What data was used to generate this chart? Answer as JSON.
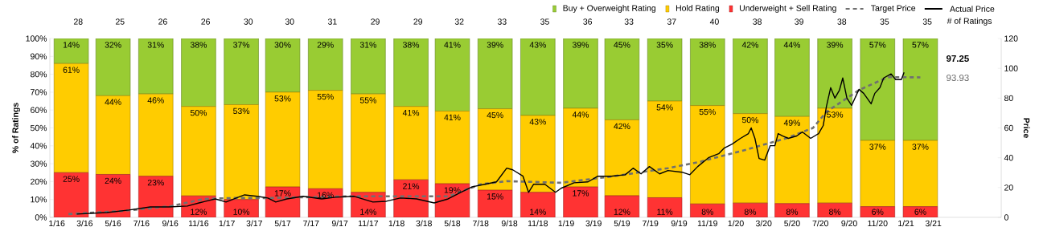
{
  "chart_data": {
    "type": "bar",
    "stacked": true,
    "ylabel": "% of Ratings",
    "y2label": "Price",
    "legend": "top right",
    "x": [
      "2016-02",
      "2016-05",
      "2016-08",
      "2016-11",
      "2017-02",
      "2017-05",
      "2017-08",
      "2017-11",
      "2018-02",
      "2018-05",
      "2018-08",
      "2018-11",
      "2019-02",
      "2019-05",
      "2019-08",
      "2019-11",
      "2020-02",
      "2020-05",
      "2020-08",
      "2020-11",
      "2021-02"
    ],
    "xlim": [
      "2015-12-17",
      "2021-07-25"
    ],
    "xticks": [
      {
        "value": "2016-01",
        "label": "1/16"
      },
      {
        "value": "2016-03",
        "label": "3/16"
      },
      {
        "value": "2016-05",
        "label": "5/16"
      },
      {
        "value": "2016-07",
        "label": "7/16"
      },
      {
        "value": "2016-09",
        "label": "9/16"
      },
      {
        "value": "2016-11",
        "label": "11/16"
      },
      {
        "value": "2017-01",
        "label": "1/17"
      },
      {
        "value": "2017-03",
        "label": "3/17"
      },
      {
        "value": "2017-05",
        "label": "5/17"
      },
      {
        "value": "2017-07",
        "label": "7/17"
      },
      {
        "value": "2017-09",
        "label": "9/17"
      },
      {
        "value": "2017-11",
        "label": "11/17"
      },
      {
        "value": "2018-01",
        "label": "1/18"
      },
      {
        "value": "2018-03",
        "label": "3/18"
      },
      {
        "value": "2018-05",
        "label": "5/18"
      },
      {
        "value": "2018-07",
        "label": "7/18"
      },
      {
        "value": "2018-09",
        "label": "9/18"
      },
      {
        "value": "2018-11",
        "label": "11/18"
      },
      {
        "value": "2019-01",
        "label": "1/19"
      },
      {
        "value": "2019-03",
        "label": "3/19"
      },
      {
        "value": "2019-05",
        "label": "5/19"
      },
      {
        "value": "2019-07",
        "label": "7/19"
      },
      {
        "value": "2019-09",
        "label": "9/19"
      },
      {
        "value": "2019-11",
        "label": "11/19"
      },
      {
        "value": "2020-01",
        "label": "1/20"
      },
      {
        "value": "2020-03",
        "label": "3/20"
      },
      {
        "value": "2020-05",
        "label": "5/20"
      },
      {
        "value": "2020-07",
        "label": "7/20"
      },
      {
        "value": "2020-09",
        "label": "9/20"
      },
      {
        "value": "2020-11",
        "label": "11/20"
      },
      {
        "value": "2021-01",
        "label": "1/21"
      },
      {
        "value": "2021-03",
        "label": "3/21"
      }
    ],
    "ylim": [
      0,
      100
    ],
    "yticks": [
      {
        "value": 0,
        "label": "0%"
      },
      {
        "value": 10,
        "label": "10%"
      },
      {
        "value": 20,
        "label": "20%"
      },
      {
        "value": 30,
        "label": "30%"
      },
      {
        "value": 40,
        "label": "40%"
      },
      {
        "value": 50,
        "label": "50%"
      },
      {
        "value": 60,
        "label": "60%"
      },
      {
        "value": 70,
        "label": "70%"
      },
      {
        "value": 80,
        "label": "80%"
      },
      {
        "value": 90,
        "label": "90%"
      },
      {
        "value": 100,
        "label": "100%"
      }
    ],
    "y2lim": [
      0,
      120
    ],
    "y2ticks": [
      0,
      20,
      40,
      60,
      80,
      100,
      120
    ],
    "series": [
      {
        "name": "Underweight + Sell Rating",
        "color": "#ff3333",
        "values": [
          25,
          24,
          23,
          12,
          10,
          17,
          16,
          14,
          21,
          18.8,
          15.2,
          14,
          17,
          12.1,
          11,
          7.5,
          8,
          7.7,
          8,
          6,
          6
        ],
        "value_labels": [
          "25%",
          "24%",
          "23%",
          "12%",
          "10%",
          "17%",
          "16%",
          "14%",
          "21%",
          "19%",
          "15%",
          "14%",
          "17%",
          "12%",
          "11%",
          "8%",
          "8%",
          "8%",
          "8%",
          "6%",
          "6%"
        ]
      },
      {
        "name": "Hold Rating",
        "color": "#ffcc00",
        "values": [
          61,
          44,
          46,
          50,
          53,
          53,
          55,
          55,
          41,
          40.6,
          45.5,
          43,
          44,
          42.4,
          54,
          55,
          50,
          48.7,
          53,
          37,
          37
        ],
        "value_labels": [
          "61%",
          "44%",
          "46%",
          "50%",
          "53%",
          "53%",
          "55%",
          "55%",
          "41%",
          "41%",
          "45%",
          "43%",
          "44%",
          "42%",
          "54%",
          "55%",
          "50%",
          "49%",
          "53%",
          "37%",
          "37%"
        ]
      },
      {
        "name": "Buy + Overweight Rating",
        "color": "#99cc33",
        "values": [
          14,
          32,
          31,
          38,
          37,
          30,
          29,
          31,
          38,
          40.6,
          39.3,
          43,
          39,
          45.5,
          35,
          37.5,
          42,
          43.6,
          39,
          57,
          57
        ],
        "value_labels": [
          "14%",
          "32%",
          "31%",
          "38%",
          "37%",
          "30%",
          "29%",
          "31%",
          "38%",
          "41%",
          "39%",
          "43%",
          "39%",
          "45%",
          "35%",
          "38%",
          "42%",
          "44%",
          "39%",
          "57%",
          "57%"
        ]
      },
      {
        "name": "Target Price",
        "type": "line",
        "axis": "y2",
        "color": "#707070",
        "line_style": "dashed",
        "x": [
          "2016-01-26",
          "2016-05-22",
          "2016-09-04",
          "2016-11-13",
          "2017-01-16",
          "2017-03-30",
          "2017-09-20",
          "2018-04-22",
          "2018-07-01",
          "2018-08-26",
          "2018-12-21",
          "2019-04-13",
          "2019-08-08",
          "2019-10-16",
          "2020-01-23",
          "2020-04-18",
          "2020-06-15",
          "2020-07-14",
          "2020-09-22",
          "2020-11-23",
          "2021-02-01"
        ],
        "values": [
          2.2,
          4.3,
          7.6,
          12.4,
          13.0,
          13.0,
          14.1,
          14.1,
          22.2,
          24.3,
          23.2,
          27.6,
          33.0,
          37.3,
          45.4,
          53.0,
          60.0,
          70.8,
          85.4,
          94.1,
          93.93
        ]
      },
      {
        "name": "Actual Price",
        "type": "line",
        "axis": "y2",
        "color": "#000000",
        "line_style": "solid",
        "x": [
          "2016-02-13",
          "2016-04-18",
          "2016-06-04",
          "2016-07-20",
          "2016-08-29",
          "2016-10-08",
          "2016-11-02",
          "2016-12-07",
          "2016-12-30",
          "2017-01-21",
          "2017-02-08",
          "2017-03-07",
          "2017-03-30",
          "2017-04-16",
          "2017-05-10",
          "2017-06-14",
          "2017-07-24",
          "2017-08-23",
          "2017-10-02",
          "2017-11-11",
          "2017-12-10",
          "2018-01-09",
          "2018-02-13",
          "2018-03-23",
          "2018-04-22",
          "2018-05-19",
          "2018-06-13",
          "2018-07-10",
          "2018-08-04",
          "2018-08-26",
          "2018-09-08",
          "2018-09-30",
          "2018-10-12",
          "2018-10-23",
          "2018-11-16",
          "2018-12-09",
          "2018-12-21",
          "2019-01-18",
          "2019-02-17",
          "2019-03-10",
          "2019-04-08",
          "2019-05-08",
          "2019-05-25",
          "2019-06-11",
          "2019-06-29",
          "2019-07-21",
          "2019-08-08",
          "2019-09-07",
          "2019-09-24",
          "2019-10-11",
          "2019-11-03",
          "2019-11-25",
          "2019-12-07",
          "2019-12-24",
          "2020-01-11",
          "2020-01-28",
          "2020-02-03",
          "2020-02-11",
          "2020-02-20",
          "2020-03-03",
          "2020-03-15",
          "2020-03-25",
          "2020-04-01",
          "2020-04-11",
          "2020-04-23",
          "2020-05-11",
          "2020-05-23",
          "2020-06-10",
          "2020-06-27",
          "2020-07-07",
          "2020-07-14",
          "2020-07-23",
          "2020-08-01",
          "2020-08-11",
          "2020-08-18",
          "2020-08-27",
          "2020-09-06",
          "2020-09-22",
          "2020-10-02",
          "2020-10-18",
          "2020-10-26",
          "2020-11-06",
          "2020-11-14",
          "2020-11-30",
          "2020-12-10",
          "2020-12-22",
          "2020-12-28"
        ],
        "values": [
          2.2,
          3.2,
          4.9,
          7.0,
          7.0,
          7.6,
          9.7,
          12.4,
          10.3,
          13.0,
          15.1,
          14.1,
          13.0,
          10.3,
          12.4,
          14.1,
          12.4,
          13.5,
          14.1,
          10.3,
          10.8,
          13.0,
          12.4,
          9.7,
          12.4,
          16.8,
          20.5,
          22.2,
          23.8,
          33.0,
          31.9,
          27.6,
          16.8,
          22.2,
          22.2,
          16.8,
          19.5,
          23.2,
          23.8,
          27.6,
          27.6,
          28.6,
          33.0,
          29.2,
          34.1,
          29.2,
          31.4,
          30.3,
          28.6,
          34.1,
          40.0,
          42.7,
          46.5,
          49.2,
          53.0,
          56.2,
          60.0,
          53.0,
          39.5,
          38.4,
          48.1,
          48.1,
          56.2,
          54.6,
          53.0,
          54.6,
          57.3,
          53.0,
          56.2,
          61.6,
          74.6,
          87.0,
          80.0,
          85.4,
          93.5,
          80.0,
          75.1,
          85.9,
          83.2,
          76.2,
          83.2,
          87.0,
          93.5,
          96.2,
          92.4,
          92.4,
          97.25
        ]
      }
    ],
    "annotations": [
      "28",
      "25",
      "26",
      "26",
      "30",
      "30",
      "31",
      "29",
      "29",
      "32",
      "33",
      "35",
      "36",
      "33",
      "37",
      "40",
      "38",
      "39",
      "38",
      "35",
      "35",
      "# of Ratings",
      "97.25",
      "93.93"
    ]
  }
}
